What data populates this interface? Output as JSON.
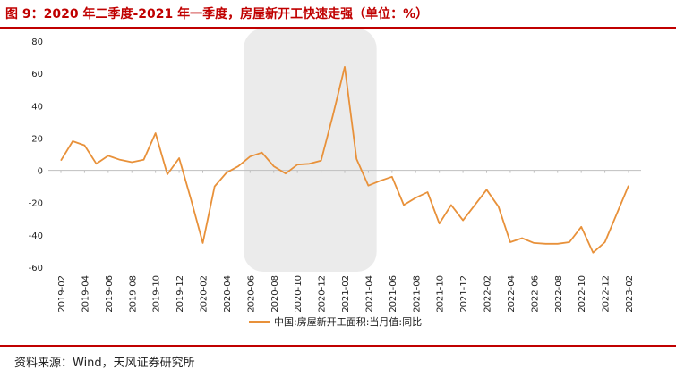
{
  "header": {
    "title": "图 9：2020 年二季度-2021 年一季度，房屋新开工快速走强（单位：%）"
  },
  "footer": {
    "source": "资料来源：Wind，天风证券研究所"
  },
  "colors": {
    "series": "#e8913a",
    "highlight": "#ebebeb",
    "accent": "#c00000"
  },
  "chart_data": {
    "type": "line",
    "ylim": [
      -60,
      80
    ],
    "yticks": [
      -60,
      -40,
      -20,
      0,
      20,
      40,
      60,
      80
    ],
    "grid": false,
    "legend_position": "bottom",
    "xtick_labels": [
      "2019-02",
      "2019-04",
      "2019-06",
      "2019-08",
      "2019-10",
      "2019-12",
      "2020-02",
      "2020-04",
      "2020-06",
      "2020-08",
      "2020-10",
      "2020-12",
      "2021-02",
      "2021-04",
      "2021-06",
      "2021-08",
      "2021-10",
      "2021-12",
      "2022-02",
      "2022-04",
      "2022-06",
      "2022-08",
      "2022-10",
      "2022-12",
      "2023-02"
    ],
    "highlight_range": [
      "2020-05",
      "2021-05"
    ],
    "series": [
      {
        "name": "中国:房屋新开工面积:当月值:同比",
        "color": "#e8913a",
        "points": [
          [
            "2019-02",
            6.0
          ],
          [
            "2019-03",
            18.0
          ],
          [
            "2019-04",
            15.5
          ],
          [
            "2019-05",
            4.0
          ],
          [
            "2019-06",
            9.0
          ],
          [
            "2019-07",
            6.5
          ],
          [
            "2019-08",
            5.0
          ],
          [
            "2019-09",
            6.5
          ],
          [
            "2019-10",
            23.0
          ],
          [
            "2019-11",
            -2.5
          ],
          [
            "2019-12",
            7.5
          ],
          [
            "2020-01",
            -18.0
          ],
          [
            "2020-02",
            -45.0
          ],
          [
            "2020-03",
            -10.0
          ],
          [
            "2020-04",
            -1.5
          ],
          [
            "2020-05",
            2.5
          ],
          [
            "2020-06",
            8.5
          ],
          [
            "2020-07",
            11.0
          ],
          [
            "2020-08",
            2.5
          ],
          [
            "2020-09",
            -2.0
          ],
          [
            "2020-10",
            3.5
          ],
          [
            "2020-11",
            4.0
          ],
          [
            "2020-12",
            6.0
          ],
          [
            "2021-01",
            34.0
          ],
          [
            "2021-02",
            64.0
          ],
          [
            "2021-03",
            7.0
          ],
          [
            "2021-04",
            -9.5
          ],
          [
            "2021-05",
            -6.5
          ],
          [
            "2021-06",
            -4.0
          ],
          [
            "2021-07",
            -21.5
          ],
          [
            "2021-08",
            -17.0
          ],
          [
            "2021-09",
            -13.5
          ],
          [
            "2021-10",
            -33.0
          ],
          [
            "2021-11",
            -21.5
          ],
          [
            "2021-12",
            -31.0
          ],
          [
            "2022-01",
            -21.5
          ],
          [
            "2022-02",
            -12.0
          ],
          [
            "2022-03",
            -22.5
          ],
          [
            "2022-04",
            -44.5
          ],
          [
            "2022-05",
            -42.0
          ],
          [
            "2022-06",
            -45.0
          ],
          [
            "2022-07",
            -45.5
          ],
          [
            "2022-08",
            -45.5
          ],
          [
            "2022-09",
            -44.5
          ],
          [
            "2022-10",
            -35.0
          ],
          [
            "2022-11",
            -51.0
          ],
          [
            "2022-12",
            -44.5
          ],
          [
            "2023-01",
            -27.0
          ],
          [
            "2023-02",
            -9.5
          ]
        ]
      }
    ]
  }
}
